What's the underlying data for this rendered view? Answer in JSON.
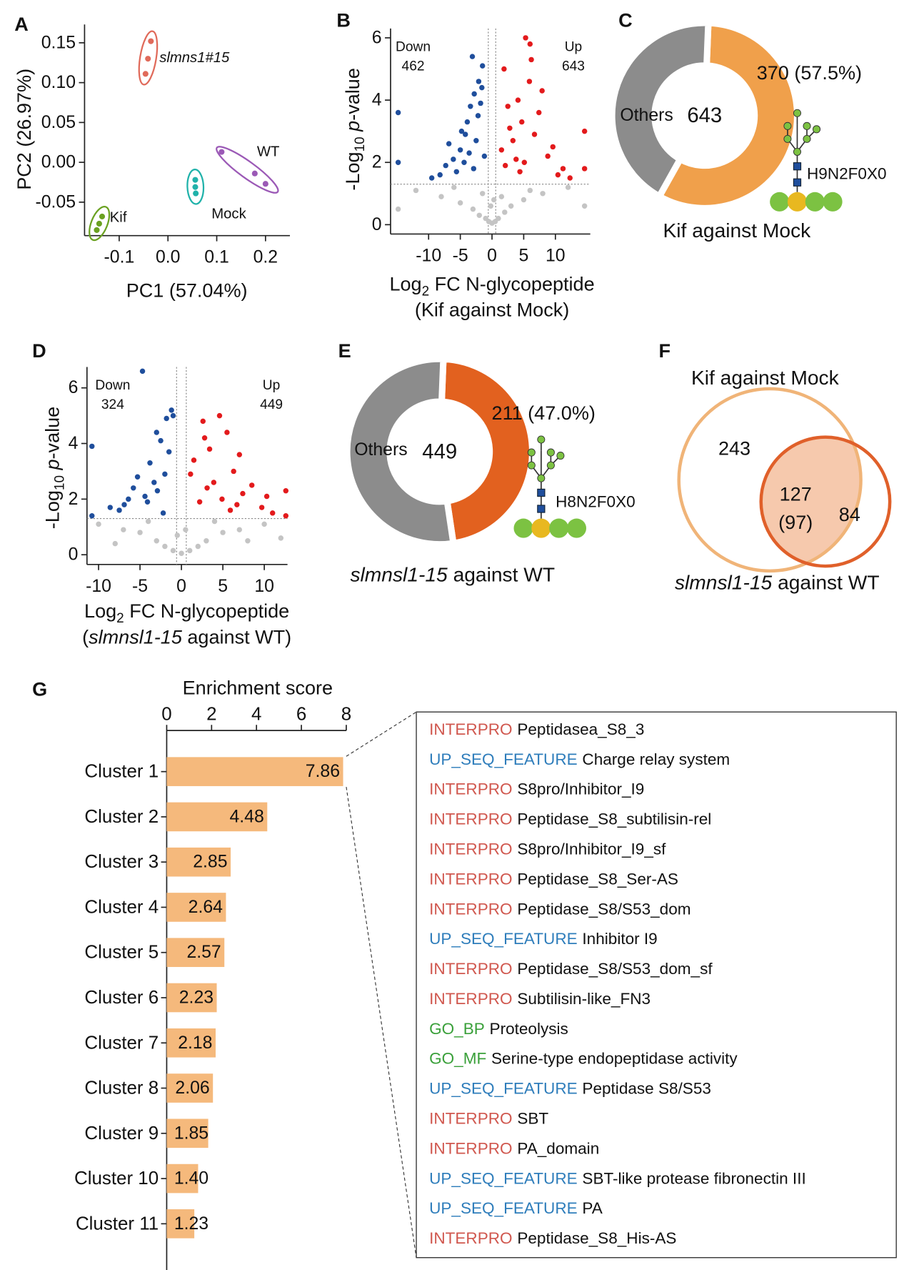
{
  "chart_data": [
    {
      "type": "scatter",
      "panel": "A",
      "xlabel": "PC1 (57.04%)",
      "ylabel": "PC2 (26.97%)",
      "xlim": [
        -0.171,
        0.25
      ],
      "ylim": [
        -0.092,
        0.173
      ],
      "xticks": [
        -0.1,
        {
          "value": 0,
          "label": "0.0"
        },
        0.1,
        0.2
      ],
      "yticks": [
        -0.05,
        {
          "value": 0,
          "label": "0.00"
        },
        0.05,
        {
          "value": 0.1,
          "label": "0.10"
        },
        0.15
      ],
      "series": [
        {
          "name": "slmns1#15",
          "italic": true,
          "color": "#e06a5a",
          "x": [
            -0.035,
            -0.041,
            -0.046
          ],
          "y": [
            0.152,
            0.13,
            0.111
          ]
        },
        {
          "name": "WT",
          "color": "#9b59b6",
          "x": [
            0.11,
            0.178,
            0.2
          ],
          "y": [
            0.013,
            -0.014,
            -0.027
          ]
        },
        {
          "name": "Mock",
          "color": "#20b2aa",
          "x": [
            0.056,
            0.056,
            0.057
          ],
          "y": [
            -0.022,
            -0.031,
            -0.039
          ]
        },
        {
          "name": "Kif",
          "color": "#6aa121",
          "x": [
            -0.135,
            -0.141,
            -0.146
          ],
          "y": [
            -0.068,
            -0.077,
            -0.085
          ]
        }
      ]
    },
    {
      "type": "volcano",
      "panel": "B",
      "xlabel": [
        [
          {
            "text": "Log"
          },
          {
            "text": "2",
            "sub": true
          },
          {
            "text": " FC N-glycopeptide"
          }
        ],
        [
          {
            "text": "(Kif against Mock)"
          }
        ]
      ],
      "ylabel": [
        {
          "text": "-Log"
        },
        {
          "text": "10",
          "sub": true
        },
        {
          "text": " p",
          "italic": true
        },
        {
          "text": "-value"
        }
      ],
      "xlim": [
        -16,
        15.5
      ],
      "ylim": [
        -0.3,
        6.3
      ],
      "xticks": [
        -10,
        -5,
        0,
        5,
        10
      ],
      "yticks": [
        0,
        2,
        4,
        6
      ],
      "threshold_y": 1.3,
      "threshold_x": [
        -0.585,
        0.585
      ],
      "series": [
        {
          "name": "Down",
          "count": 462,
          "color": "#1f4e9c",
          "x": [
            -2.1,
            -3.4,
            -1.5,
            -4.2,
            -5.0,
            -2.8,
            -6.1,
            -3.9,
            -1.8,
            -7.3,
            -2.5,
            -4.8,
            -1.2,
            -3.1,
            -5.6,
            -8.2,
            -2.2,
            -4.4,
            -1.6,
            -6.8,
            -3.6,
            -9.5,
            -2.9,
            -14.8,
            -14.8
          ],
          "y": [
            4.6,
            3.8,
            5.1,
            2.9,
            2.4,
            4.2,
            2.1,
            3.3,
            3.9,
            1.9,
            2.7,
            3.0,
            2.2,
            5.4,
            1.7,
            1.6,
            3.5,
            2.0,
            4.4,
            2.6,
            2.3,
            1.5,
            1.8,
            3.6,
            2.0
          ]
        },
        {
          "name": "Up",
          "count": 643,
          "color": "#e31a1c",
          "x": [
            1.5,
            2.8,
            4.1,
            5.3,
            6.2,
            7.4,
            3.3,
            8.8,
            2.1,
            5.9,
            9.6,
            4.7,
            1.9,
            11.2,
            6.7,
            3.8,
            7.9,
            2.5,
            10.4,
            5.1,
            12.3,
            4.4,
            14.6,
            14.6,
            6.0
          ],
          "y": [
            2.4,
            3.1,
            4.0,
            6.0,
            5.3,
            3.6,
            2.7,
            2.2,
            1.9,
            4.6,
            2.5,
            3.3,
            5.0,
            1.8,
            2.9,
            2.1,
            4.3,
            3.8,
            1.6,
            2.0,
            1.5,
            1.7,
            3.0,
            1.8,
            5.8
          ]
        }
      ],
      "background": {
        "color": "#c4c4c4",
        "x": [
          -12,
          -8,
          -5,
          -3,
          -2,
          -1,
          -0.5,
          0,
          0.5,
          1,
          2,
          3,
          5,
          8,
          12,
          -14.8,
          14.6,
          -6,
          6,
          -1.5,
          1.5,
          -0.2,
          0.3
        ],
        "y": [
          1.1,
          0.9,
          0.7,
          0.5,
          0.3,
          0.2,
          0.1,
          0.05,
          0.1,
          0.2,
          0.4,
          0.6,
          0.8,
          1.0,
          1.2,
          0.5,
          0.6,
          1.2,
          1.1,
          1.0,
          0.9,
          0.6,
          0.8
        ]
      }
    },
    {
      "type": "donut",
      "panel": "C",
      "title": "Kif against Mock",
      "total": 643,
      "categories": [
        null,
        "Others"
      ],
      "values": [
        57.5,
        42.5
      ],
      "value_labels": [
        "370 (57.5%)",
        null
      ],
      "colors": [
        "#f0a04b",
        "#8c8c8c"
      ],
      "glycan": "H9N2F0X0"
    },
    {
      "type": "volcano",
      "panel": "D",
      "xlabel": [
        [
          {
            "text": "Log"
          },
          {
            "text": "2",
            "sub": true
          },
          {
            "text": " FC N-glycopeptide"
          }
        ],
        [
          {
            "text": "("
          },
          {
            "text": "slmnsl1-15",
            "italic": true
          },
          {
            "text": " against WT)"
          }
        ]
      ],
      "ylabel": [
        {
          "text": "-Log"
        },
        {
          "text": "10",
          "sub": true
        },
        {
          "text": " p",
          "italic": true
        },
        {
          "text": "-value"
        }
      ],
      "xlim": [
        -11.4,
        12.8
      ],
      "ylim": [
        -0.35,
        6.75
      ],
      "xticks": [
        -10,
        -5,
        0,
        5,
        10
      ],
      "yticks": [
        0,
        2,
        4,
        6
      ],
      "threshold_y": 1.3,
      "threshold_x": [
        -0.585,
        0.585
      ],
      "series": [
        {
          "name": "Down",
          "count": 324,
          "color": "#1f4e9c",
          "x": [
            -1.2,
            -2.5,
            -3.8,
            -4.7,
            -5.3,
            -1.8,
            -2.9,
            -6.4,
            -7.5,
            -3.3,
            -4.1,
            -1.5,
            -2.2,
            -5.8,
            -8.6,
            -10.8,
            -10.8,
            -3.0,
            -4.4,
            -1.0,
            -6.9,
            -2.0
          ],
          "y": [
            5.2,
            4.1,
            3.3,
            6.6,
            2.8,
            4.9,
            2.3,
            2.0,
            1.6,
            2.6,
            1.9,
            3.7,
            1.5,
            2.4,
            1.7,
            3.9,
            1.4,
            4.4,
            2.1,
            5.0,
            1.8,
            2.9
          ]
        },
        {
          "name": "Up",
          "count": 449,
          "color": "#e31a1c",
          "x": [
            1.5,
            2.8,
            3.9,
            4.6,
            5.5,
            6.3,
            7.4,
            2.2,
            8.5,
            9.7,
            3.4,
            4.9,
            11.0,
            1.1,
            5.9,
            7.0,
            12.6,
            12.6,
            2.6,
            6.7,
            10.3,
            3.1
          ],
          "y": [
            3.4,
            4.2,
            2.6,
            5.0,
            4.4,
            3.0,
            2.2,
            1.9,
            2.5,
            1.7,
            3.8,
            2.0,
            1.5,
            2.9,
            1.6,
            3.6,
            2.3,
            1.4,
            4.8,
            1.8,
            2.1,
            2.4
          ]
        }
      ],
      "background": {
        "color": "#c4c4c4",
        "x": [
          -10,
          -7,
          -5,
          -3,
          -2,
          -1,
          0,
          1,
          2,
          3,
          5,
          7,
          10,
          -4,
          4,
          -8,
          8,
          -0.5,
          0.5,
          12
        ],
        "y": [
          1.1,
          0.9,
          0.8,
          0.5,
          0.3,
          0.15,
          0.05,
          0.15,
          0.3,
          0.5,
          0.8,
          0.9,
          1.1,
          1.2,
          1.2,
          0.4,
          0.5,
          0.7,
          0.9,
          0.6
        ]
      }
    },
    {
      "type": "donut",
      "panel": "E",
      "title": [
        {
          "text": "slmnsl1-15",
          "italic": true
        },
        {
          "text": " against WT"
        }
      ],
      "total": 449,
      "categories": [
        null,
        "Others"
      ],
      "values": [
        47,
        53
      ],
      "value_labels": [
        "211 (47.0%)",
        null
      ],
      "colors": [
        "#e2611f",
        "#8c8c8c"
      ],
      "glycan": "H8N2F0X0"
    },
    {
      "type": "venn",
      "panel": "F",
      "sets": [
        {
          "name": "Kif against Mock",
          "color": "#f0b478",
          "only": 243
        },
        {
          "name": [
            {
              "text": "slmnsl1-15",
              "italic": true
            },
            {
              "text": " against WT"
            }
          ],
          "color": "#e0602a",
          "only": 84
        }
      ],
      "intersection": 127,
      "intersection_note": {
        "value": 97,
        "label": "(97)"
      },
      "intersection_color": "#f6c9ad"
    },
    {
      "type": "barh",
      "panel": "G",
      "title": "Enrichment score",
      "xlim": [
        0,
        8
      ],
      "xticks": [
        0,
        2,
        4,
        6,
        8
      ],
      "color": "#f5b97c",
      "categories": [
        "Cluster 1",
        "Cluster 2",
        "Cluster 3",
        "Cluster 4",
        "Cluster 5",
        "Cluster 6",
        "Cluster 7",
        "Cluster 8",
        "Cluster 9",
        "Cluster 10",
        "Cluster 11"
      ],
      "values": [
        7.86,
        4.48,
        2.85,
        2.64,
        2.57,
        2.23,
        2.18,
        2.06,
        1.85,
        1.4,
        1.23
      ],
      "value_labels": [
        "7.86",
        "4.48",
        "2.85",
        "2.64",
        "2.57",
        "2.23",
        "2.18",
        "2.06",
        "1.85",
        "1.40",
        "1.23"
      ],
      "value_label_colors": [
        "#e31a1c",
        "#111111",
        "#111111",
        "#111111",
        "#111111",
        "#111111",
        "#111111",
        "#111111",
        "#111111",
        "#111111",
        "#111111"
      ],
      "terms": {
        "source_colors": {
          "INTERPRO": "#d0574e",
          "UP_SEQ_FEATURE": "#2e7dbb",
          "GO_BP": "#3aa03a",
          "GO_MF": "#3aa03a"
        },
        "rows": [
          {
            "source": "INTERPRO",
            "term": "Peptidasea_S8_3"
          },
          {
            "source": "UP_SEQ_FEATURE",
            "term": "Charge relay system"
          },
          {
            "source": "INTERPRO",
            "term": "S8pro/Inhibitor_I9"
          },
          {
            "source": "INTERPRO",
            "term": "Peptidase_S8_subtilisin-rel"
          },
          {
            "source": "INTERPRO",
            "term": "S8pro/Inhibitor_I9_sf"
          },
          {
            "source": "INTERPRO",
            "term": "Peptidase_S8_Ser-AS"
          },
          {
            "source": "INTERPRO",
            "term": "Peptidase_S8/S53_dom"
          },
          {
            "source": "UP_SEQ_FEATURE",
            "term": "Inhibitor I9"
          },
          {
            "source": "INTERPRO",
            "term": "Peptidase_S8/S53_dom_sf"
          },
          {
            "source": "INTERPRO",
            "term": "Subtilisin-like_FN3"
          },
          {
            "source": "GO_BP",
            "term": "Proteolysis"
          },
          {
            "source": "GO_MF",
            "term": "Serine-type endopeptidase activity"
          },
          {
            "source": "UP_SEQ_FEATURE",
            "term": "Peptidase S8/S53"
          },
          {
            "source": "INTERPRO",
            "term": "SBT"
          },
          {
            "source": "INTERPRO",
            "term": "PA_domain"
          },
          {
            "source": "UP_SEQ_FEATURE",
            "term": "SBT-like protease fibronectin III"
          },
          {
            "source": "UP_SEQ_FEATURE",
            "term": "PA"
          },
          {
            "source": "INTERPRO",
            "term": "Peptidase_S8_His-AS"
          }
        ]
      }
    }
  ]
}
